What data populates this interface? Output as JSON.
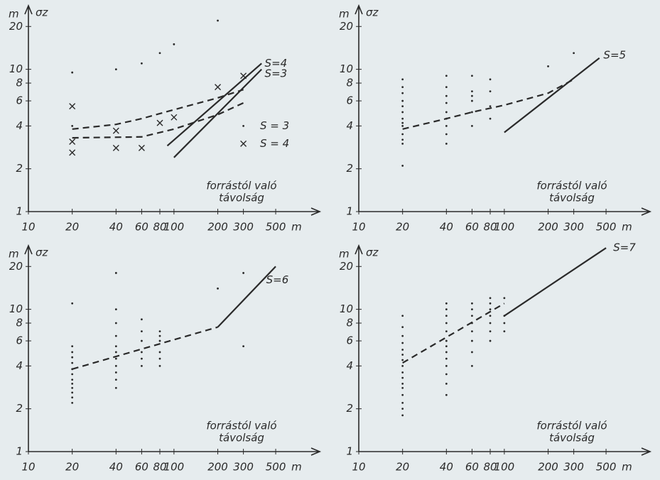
{
  "chart_data": [
    {
      "type": "scatter",
      "xlog": true,
      "ylog": true,
      "xlim": [
        10,
        700
      ],
      "ylim": [
        1,
        28
      ],
      "xticks": [
        10,
        20,
        40,
        60,
        80,
        100,
        200,
        300,
        500
      ],
      "yticks": [
        1,
        2,
        4,
        6,
        8,
        10,
        20
      ],
      "x_unit": "m",
      "y_unit": "m",
      "ylabel": "σz",
      "xlabel": [
        "forrástól való",
        "távolság"
      ],
      "color": "#2a2a2a",
      "series": [
        {
          "style": "dots",
          "x": [
            20,
            20,
            40,
            60,
            80,
            100,
            200,
            300
          ],
          "values": [
            9.5,
            4,
            10,
            11,
            13,
            15,
            22,
            4
          ]
        },
        {
          "style": "cross",
          "x": [
            20,
            20,
            20,
            40,
            40,
            60,
            80,
            100,
            200,
            300,
            300
          ],
          "values": [
            5.5,
            3.1,
            2.6,
            3.7,
            2.8,
            2.8,
            4.2,
            4.6,
            7.5,
            9,
            3
          ]
        },
        {
          "style": "dashed",
          "x": [
            20,
            40,
            60,
            100,
            200,
            300
          ],
          "values": [
            3.8,
            4.1,
            4.5,
            5.2,
            6.3,
            7.2
          ]
        },
        {
          "style": "dashed",
          "x": [
            20,
            60,
            100,
            200,
            300
          ],
          "values": [
            3.3,
            3.35,
            3.8,
            4.8,
            5.8
          ]
        },
        {
          "style": "solid",
          "x": [
            90,
            400
          ],
          "values": [
            2.9,
            11
          ]
        },
        {
          "style": "solid",
          "x": [
            100,
            400
          ],
          "values": [
            2.4,
            10
          ]
        }
      ],
      "annotations": [
        {
          "text": "S=4",
          "x": 420,
          "y": 11
        },
        {
          "text": "S=3",
          "x": 420,
          "y": 9.3
        },
        {
          "text": "S = 3",
          "x": 390,
          "y": 4
        },
        {
          "text": "S = 4",
          "x": 390,
          "y": 3
        }
      ]
    },
    {
      "type": "scatter",
      "xlog": true,
      "ylog": true,
      "xlim": [
        10,
        700
      ],
      "ylim": [
        1,
        28
      ],
      "xticks": [
        10,
        20,
        40,
        60,
        80,
        100,
        200,
        300,
        500
      ],
      "yticks": [
        1,
        2,
        4,
        6,
        8,
        10,
        20
      ],
      "x_unit": "m",
      "y_unit": "m",
      "ylabel": "σz",
      "xlabel": [
        "forrástól való",
        "távolság"
      ],
      "color": "#2a2a2a",
      "series": [
        {
          "style": "dots",
          "x": [
            20,
            20,
            20,
            20,
            20,
            20,
            20,
            20,
            20,
            20,
            20,
            20,
            20,
            40,
            40,
            40,
            40,
            40,
            40,
            40,
            40,
            40,
            60,
            60,
            60,
            60,
            60,
            60,
            80,
            80,
            80,
            80,
            200,
            300
          ],
          "values": [
            2.1,
            3,
            3.2,
            3.5,
            4,
            4.2,
            4.5,
            5,
            5.5,
            6,
            6.8,
            7.5,
            8.5,
            3,
            3.5,
            4,
            4.5,
            5,
            5.8,
            6.5,
            7.5,
            9,
            4,
            5,
            6,
            6.5,
            7,
            9,
            4.5,
            5.5,
            7,
            8.5,
            10.5,
            13
          ]
        },
        {
          "style": "dashed",
          "x": [
            20,
            40,
            60,
            100,
            200,
            300
          ],
          "values": [
            3.8,
            4.5,
            5,
            5.6,
            6.8,
            8.5
          ]
        },
        {
          "style": "solid",
          "x": [
            100,
            450
          ],
          "values": [
            3.6,
            12
          ]
        }
      ],
      "annotations": [
        {
          "text": "S=5",
          "x": 480,
          "y": 12.5
        }
      ]
    },
    {
      "type": "scatter",
      "xlog": true,
      "ylog": true,
      "xlim": [
        10,
        700
      ],
      "ylim": [
        1,
        28
      ],
      "xticks": [
        10,
        20,
        40,
        60,
        80,
        100,
        200,
        300,
        500
      ],
      "yticks": [
        1,
        2,
        4,
        6,
        8,
        10,
        20
      ],
      "x_unit": "m",
      "y_unit": "m",
      "ylabel": "σz",
      "xlabel": [
        "forrástól való",
        "távolság"
      ],
      "color": "#2a2a2a",
      "series": [
        {
          "style": "dots",
          "x": [
            20,
            20,
            20,
            20,
            20,
            20,
            20,
            20,
            20,
            20,
            20,
            20,
            20,
            40,
            40,
            40,
            40,
            40,
            40,
            40,
            40,
            40,
            40,
            40,
            60,
            60,
            60,
            60,
            60,
            60,
            80,
            80,
            80,
            80,
            80,
            80,
            200,
            300,
            300
          ],
          "values": [
            2.2,
            2.4,
            2.6,
            2.8,
            3,
            3.2,
            3.5,
            3.8,
            4.2,
            4.6,
            5,
            5.5,
            11,
            2.8,
            3.2,
            3.6,
            4,
            4.5,
            5,
            5.5,
            6.5,
            8,
            10,
            18,
            4,
            4.5,
            5,
            6,
            7,
            8.5,
            4,
            4.5,
            5,
            6,
            6.5,
            7,
            14,
            5.5,
            18
          ]
        },
        {
          "style": "dashed",
          "x": [
            20,
            200
          ],
          "values": [
            3.8,
            7.5
          ]
        },
        {
          "style": "solid",
          "x": [
            200,
            500
          ],
          "values": [
            7.5,
            20
          ]
        }
      ],
      "annotations": [
        {
          "text": "S=6",
          "x": 430,
          "y": 16
        }
      ]
    },
    {
      "type": "scatter",
      "xlog": true,
      "ylog": true,
      "xlim": [
        10,
        700
      ],
      "ylim": [
        1,
        28
      ],
      "xticks": [
        10,
        20,
        40,
        60,
        80,
        100,
        200,
        300,
        500
      ],
      "yticks": [
        1,
        2,
        4,
        6,
        8,
        10,
        20
      ],
      "x_unit": "m",
      "y_unit": "m",
      "ylabel": "σz",
      "xlabel": [
        "forrástól való",
        "távolság"
      ],
      "color": "#2a2a2a",
      "series": [
        {
          "style": "dots",
          "x": [
            20,
            20,
            20,
            20,
            20,
            20,
            20,
            20,
            20,
            20,
            20,
            20,
            20,
            20,
            20,
            20,
            40,
            40,
            40,
            40,
            40,
            40,
            40,
            40,
            40,
            40,
            40,
            40,
            40,
            60,
            60,
            60,
            60,
            60,
            60,
            60,
            60,
            80,
            80,
            80,
            80,
            80,
            80,
            80,
            100,
            100,
            100,
            100
          ],
          "values": [
            1.8,
            2,
            2.2,
            2.5,
            2.8,
            3,
            3.3,
            3.6,
            4,
            4.4,
            4.8,
            5.2,
            5.8,
            6.5,
            7.5,
            9,
            2.5,
            3,
            3.5,
            4,
            4.5,
            5,
            5.5,
            6,
            7,
            8,
            9,
            10,
            11,
            4,
            5,
            6,
            7,
            8,
            9,
            10,
            11,
            6,
            7,
            8,
            9,
            10,
            11,
            12,
            7,
            8,
            9,
            12
          ]
        },
        {
          "style": "dashed",
          "x": [
            20,
            100
          ],
          "values": [
            4.2,
            11
          ]
        },
        {
          "style": "solid",
          "x": [
            100,
            500
          ],
          "values": [
            9,
            27
          ]
        }
      ],
      "annotations": [
        {
          "text": "S=7",
          "x": 560,
          "y": 27
        }
      ]
    }
  ]
}
